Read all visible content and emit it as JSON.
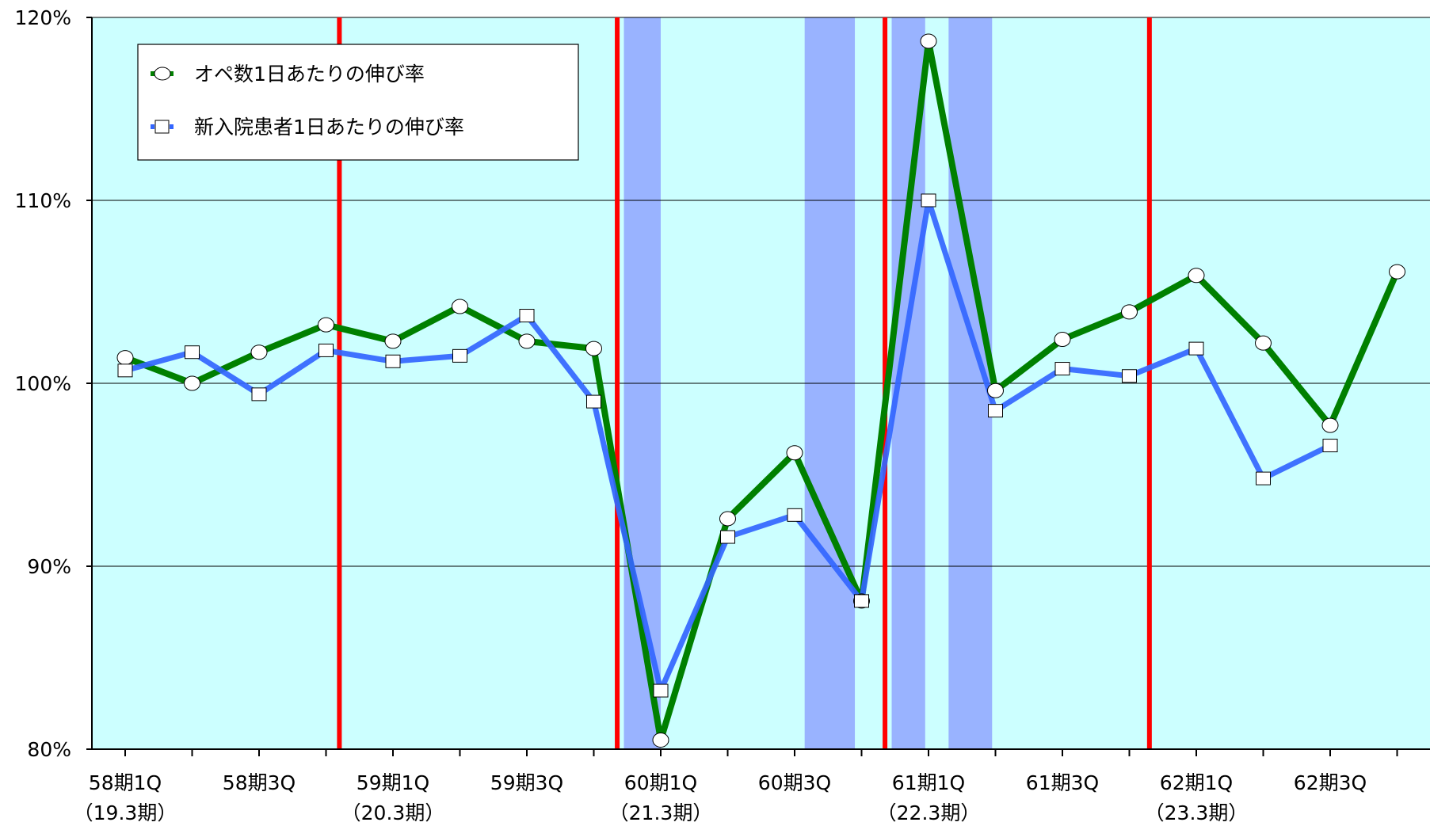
{
  "chart_data": {
    "type": "line",
    "title": "",
    "xlabel": "",
    "ylabel": "",
    "ylim": [
      80,
      120
    ],
    "y_ticks": [
      "80%",
      "90%",
      "100%",
      "110%",
      "120%"
    ],
    "y_tick_values": [
      80,
      90,
      100,
      110,
      120
    ],
    "x_tick_labels": [
      {
        "index": 0,
        "lines": [
          "58期1Q",
          "（19.3期）"
        ]
      },
      {
        "index": 2,
        "lines": [
          "58期3Q"
        ]
      },
      {
        "index": 4,
        "lines": [
          "59期1Q",
          "（20.3期）"
        ]
      },
      {
        "index": 6,
        "lines": [
          "59期3Q"
        ]
      },
      {
        "index": 8,
        "lines": [
          "60期1Q",
          "（21.3期）"
        ]
      },
      {
        "index": 10,
        "lines": [
          "60期3Q"
        ]
      },
      {
        "index": 12,
        "lines": [
          "61期1Q",
          "（22.3期）"
        ]
      },
      {
        "index": 14,
        "lines": [
          "61期3Q"
        ]
      },
      {
        "index": 16,
        "lines": [
          "62期1Q",
          "（23.3期）"
        ]
      },
      {
        "index": 18,
        "lines": [
          "62期3Q"
        ]
      }
    ],
    "x_count": 20,
    "grid": true,
    "legend_position": "top-left",
    "background_color": "#ccffff",
    "series": [
      {
        "name": "オペ数1日あたりの伸び率",
        "color": "#008000",
        "marker": "circle",
        "values": [
          101.4,
          100.0,
          101.7,
          103.2,
          102.3,
          104.2,
          102.3,
          101.9,
          80.5,
          92.6,
          96.2,
          88.1,
          118.7,
          99.6,
          102.4,
          103.9,
          105.9,
          102.2,
          97.7,
          106.1
        ]
      },
      {
        "name": "新入院患者1日あたりの伸び率",
        "color": "#3366ff",
        "marker": "square",
        "values": [
          100.7,
          101.7,
          99.4,
          101.8,
          101.2,
          101.5,
          103.7,
          99.0,
          83.2,
          91.6,
          92.8,
          88.1,
          110.0,
          98.5,
          100.8,
          100.4,
          101.9,
          94.8,
          96.6,
          null
        ]
      }
    ],
    "vertical_markers": [
      {
        "color": "#ff0000",
        "after_index": 3.2
      },
      {
        "color": "#ff0000",
        "after_index": 7.35
      },
      {
        "color": "#ff0000",
        "after_index": 11.35
      },
      {
        "color": "#ff0000",
        "after_index": 15.3
      }
    ],
    "shaded_periods": [
      {
        "color": "#99b3ff",
        "from_index": 7.45,
        "to_index": 8.0
      },
      {
        "color": "#99b3ff",
        "from_index": 10.15,
        "to_index": 10.9
      },
      {
        "color": "#99b3ff",
        "from_index": 11.45,
        "to_index": 11.95
      },
      {
        "color": "#99b3ff",
        "from_index": 12.3,
        "to_index": 12.95
      }
    ]
  }
}
